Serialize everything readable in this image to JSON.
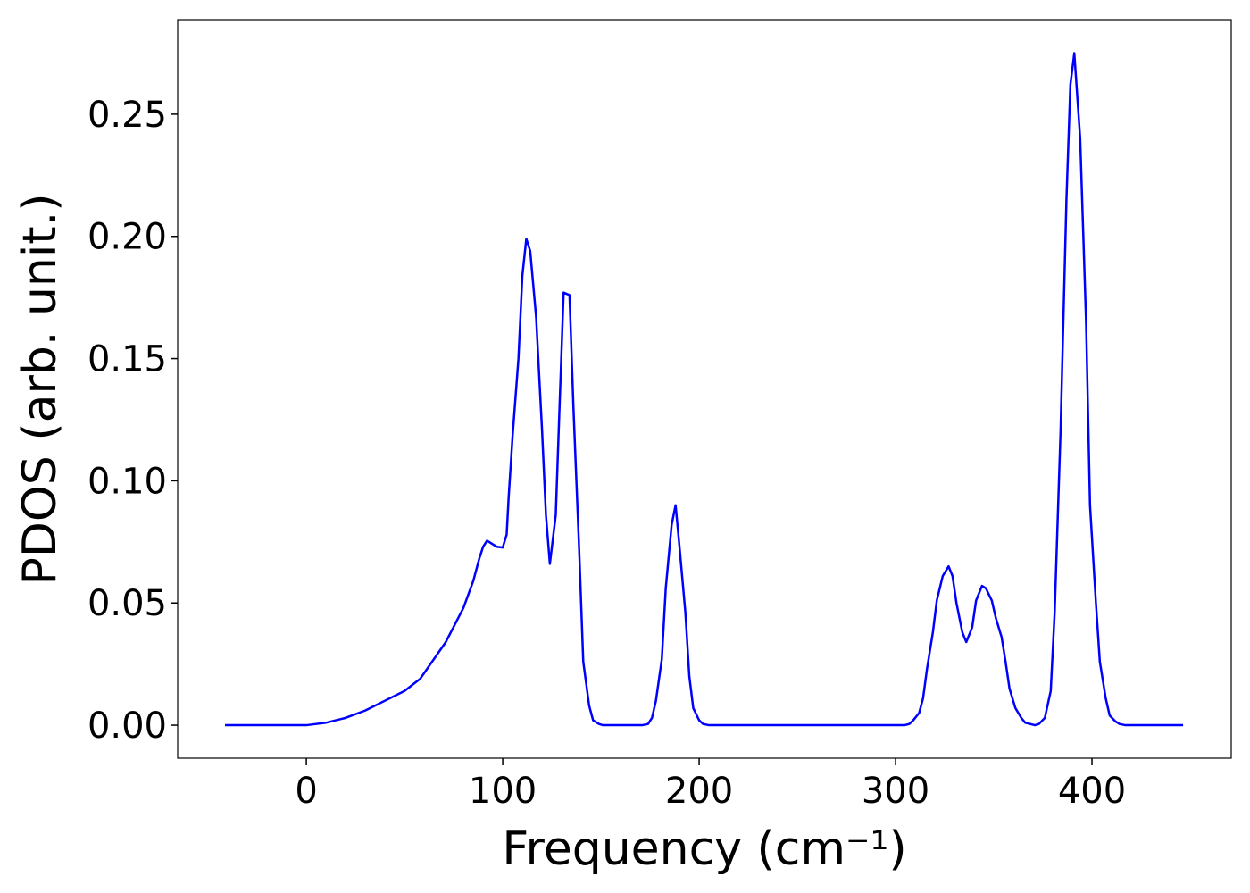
{
  "chart_data": {
    "type": "line",
    "xlabel": "Frequency (cm⁻¹)",
    "ylabel": "PDOS (arb. unit.)",
    "x": [
      -41.4,
      0,
      10,
      20,
      30,
      40,
      50,
      58,
      71,
      80,
      85,
      88,
      90,
      92,
      95,
      97,
      100,
      102,
      103,
      105,
      108,
      110,
      112,
      114,
      117,
      120,
      122,
      124,
      127,
      129,
      131,
      134,
      136,
      139,
      141,
      144,
      146,
      149,
      151,
      171,
      174,
      176,
      178,
      181,
      183,
      186,
      188,
      190,
      193,
      195,
      197,
      200,
      202,
      205,
      304.5,
      307,
      309,
      312,
      314,
      316,
      319,
      321,
      324,
      327,
      329,
      331,
      334,
      336,
      339,
      341,
      344,
      346,
      349,
      351,
      354,
      356,
      358,
      361,
      364,
      366,
      371,
      373,
      376,
      379,
      381,
      384,
      387,
      389,
      391,
      394,
      397,
      399,
      402,
      404,
      407,
      409,
      412,
      414,
      417,
      446.4
    ],
    "series": [
      {
        "name": "PDOS",
        "color": "#0000ff",
        "values": [
          0,
          0,
          0.001,
          0.003,
          0.006,
          0.01,
          0.014,
          0.019,
          0.034,
          0.048,
          0.059,
          0.068,
          0.073,
          0.0755,
          0.074,
          0.073,
          0.0727,
          0.078,
          0.093,
          0.118,
          0.15,
          0.184,
          0.199,
          0.194,
          0.167,
          0.121,
          0.086,
          0.066,
          0.086,
          0.132,
          0.177,
          0.176,
          0.13,
          0.07,
          0.026,
          0.008,
          0.002,
          0.0005,
          0,
          0,
          0.0005,
          0.003,
          0.01,
          0.027,
          0.056,
          0.082,
          0.09,
          0.073,
          0.046,
          0.02,
          0.007,
          0.002,
          0.0005,
          0,
          0,
          0.0005,
          0.002,
          0.005,
          0.011,
          0.023,
          0.038,
          0.051,
          0.061,
          0.065,
          0.061,
          0.05,
          0.038,
          0.034,
          0.04,
          0.051,
          0.057,
          0.056,
          0.051,
          0.044,
          0.036,
          0.026,
          0.015,
          0.007,
          0.003,
          0.001,
          0,
          0.0005,
          0.003,
          0.014,
          0.046,
          0.12,
          0.215,
          0.262,
          0.275,
          0.24,
          0.165,
          0.09,
          0.05,
          0.026,
          0.011,
          0.004,
          0.0015,
          0.0005,
          0,
          0
        ]
      }
    ],
    "xlim": [
      -65.5,
      470.9
    ],
    "xticks": [
      0,
      100,
      200,
      300,
      400
    ],
    "ylim": [
      -0.0135,
      0.2887
    ],
    "yticks": [
      {
        "value": 0,
        "label": "0.00"
      },
      0.05,
      {
        "value": 0.1,
        "label": "0.10"
      },
      0.15,
      {
        "value": 0.2,
        "label": "0.20"
      },
      0.25
    ]
  }
}
